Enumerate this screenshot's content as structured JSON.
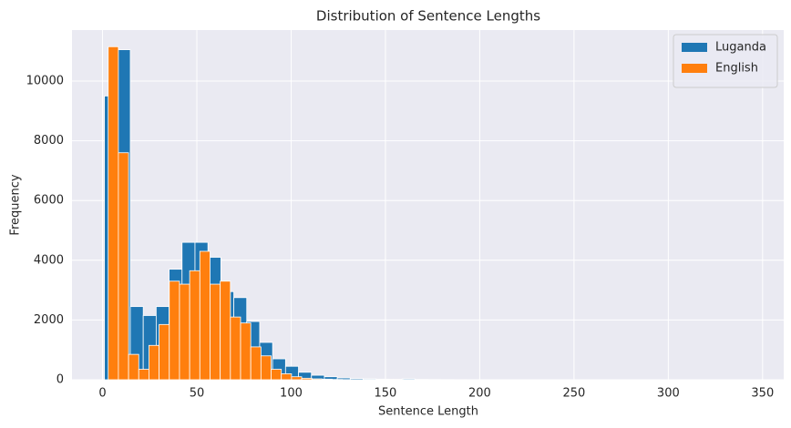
{
  "chart_data": {
    "type": "histogram",
    "title": "Distribution of Sentence Lengths",
    "x_label": "Sentence Length",
    "y_label": "Frequency",
    "xlim": [
      -16.2,
      361.2
    ],
    "ylim": [
      0,
      11708
    ],
    "xticks": [
      0,
      50,
      100,
      150,
      200,
      250,
      300,
      350
    ],
    "yticks": [
      0,
      2000,
      4000,
      6000,
      8000,
      10000
    ],
    "grid": true,
    "legend_position": "upper-right",
    "series": [
      {
        "name": "Luganda",
        "color": "#1f77b4",
        "bins": [
          1,
          7.86,
          14.72,
          21.58,
          28.44,
          35.3,
          42.16,
          49.02,
          55.88,
          62.74,
          69.6,
          76.46,
          83.32,
          90.18,
          97.04,
          103.9,
          110.76,
          117.62,
          124.48,
          131.34,
          138.2,
          145.06,
          151.92,
          158.78,
          165.64,
          172.5,
          179.36,
          186.22,
          193.08,
          199.94,
          206.8,
          213.66,
          220.52,
          227.38,
          234.24,
          241.1,
          247.96,
          254.82,
          261.68,
          268.54,
          275.4,
          282.26,
          289.12,
          295.98,
          302.84,
          309.7,
          316.56,
          323.42,
          330.28,
          337.14,
          344
        ],
        "values": [
          9500,
          11050,
          2450,
          2150,
          2450,
          3700,
          4600,
          4600,
          4100,
          2950,
          2750,
          1950,
          1250,
          700,
          450,
          250,
          150,
          100,
          60,
          40,
          30,
          20,
          15,
          30,
          10,
          8,
          5,
          4,
          3,
          3,
          2,
          2,
          2,
          1,
          1,
          1,
          1,
          1,
          0,
          1,
          0,
          0,
          1,
          0,
          0,
          0,
          0,
          0,
          0,
          1
        ]
      },
      {
        "name": "English",
        "color": "#ff7f0e",
        "bins": [
          3,
          8.4,
          13.8,
          19.2,
          24.6,
          30,
          35.4,
          40.8,
          46.2,
          51.6,
          57,
          62.4,
          67.8,
          73.2,
          78.6,
          84,
          89.4,
          94.8,
          100.2,
          105.6,
          111,
          116.4,
          121.8,
          127.2,
          132.6,
          138,
          143.4,
          148.8,
          154.2,
          159.6,
          165,
          170.4,
          175.8,
          181.2,
          186.6,
          192,
          197.4,
          202.8,
          208.2,
          213.6,
          219,
          224.4,
          229.8,
          235.2,
          240.6,
          246,
          251.4,
          256.8,
          262.2,
          267.6,
          273
        ],
        "values": [
          11150,
          7600,
          850,
          350,
          1150,
          1850,
          3300,
          3200,
          3650,
          4300,
          3200,
          3300,
          2100,
          1900,
          1100,
          800,
          350,
          200,
          100,
          50,
          30,
          20,
          10,
          5,
          3,
          2,
          1,
          1,
          1,
          0,
          0,
          0,
          0,
          0,
          1,
          0,
          0,
          0,
          0,
          0,
          0,
          0,
          0,
          0,
          0,
          0,
          0,
          0,
          0,
          1
        ]
      }
    ]
  }
}
